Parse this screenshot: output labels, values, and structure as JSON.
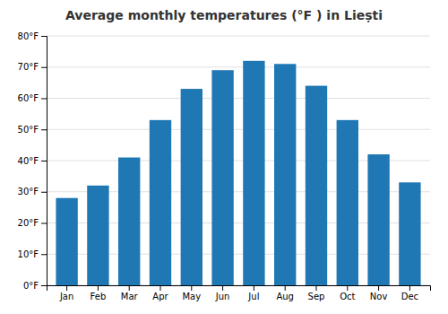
{
  "chart_data": {
    "type": "bar",
    "title": "Average monthly temperatures (°F ) in Liești",
    "categories": [
      "Jan",
      "Feb",
      "Mar",
      "Apr",
      "May",
      "Jun",
      "Jul",
      "Aug",
      "Sep",
      "Oct",
      "Nov",
      "Dec"
    ],
    "values": [
      28,
      32,
      41,
      53,
      63,
      69,
      72,
      71,
      64,
      53,
      42,
      33
    ],
    "ylim": [
      0,
      80
    ],
    "yticks": [
      {
        "value": 0,
        "label": "0°F"
      },
      {
        "value": 10,
        "label": "10°F"
      },
      {
        "value": 20,
        "label": "20°F"
      },
      {
        "value": 30,
        "label": "30°F"
      },
      {
        "value": 40,
        "label": "40°F"
      },
      {
        "value": 50,
        "label": "50°F"
      },
      {
        "value": 60,
        "label": "60°F"
      },
      {
        "value": 70,
        "label": "70°F"
      },
      {
        "value": 80,
        "label": "80°F"
      }
    ],
    "grid": true
  }
}
